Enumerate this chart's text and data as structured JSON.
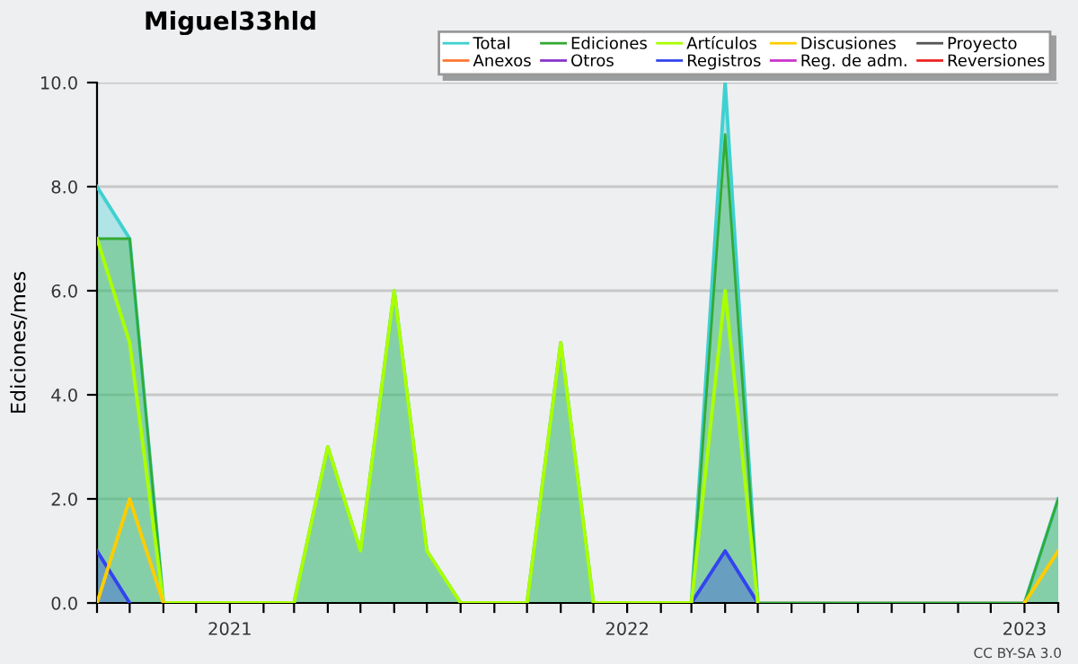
{
  "chart_data": {
    "type": "line",
    "title": "Miguel33hld",
    "ylabel": "Ediciones/mes",
    "x": [
      "2020-09",
      "2020-10",
      "2020-11",
      "2020-12",
      "2021-01",
      "2021-02",
      "2021-03",
      "2021-04",
      "2021-05",
      "2021-06",
      "2021-07",
      "2021-08",
      "2021-09",
      "2021-10",
      "2021-11",
      "2021-12",
      "2022-01",
      "2022-02",
      "2022-03",
      "2022-04",
      "2022-05",
      "2022-06",
      "2022-07",
      "2022-08",
      "2022-09",
      "2022-10",
      "2022-11",
      "2022-12",
      "2023-01",
      "2023-02"
    ],
    "series": [
      {
        "name": "Total",
        "type": "area",
        "color": "#40d0d0",
        "values": [
          8,
          7,
          0,
          null,
          null,
          null,
          0,
          3,
          1,
          6,
          1,
          0,
          null,
          0,
          5,
          0,
          null,
          null,
          0,
          10,
          0,
          null,
          null,
          null,
          null,
          null,
          null,
          null,
          0,
          2
        ]
      },
      {
        "name": "Anexos",
        "color": "#ff7733",
        "values": [
          null,
          null,
          null,
          null,
          null,
          null,
          null,
          null,
          null,
          null,
          null,
          null,
          null,
          null,
          null,
          null,
          null,
          null,
          null,
          null,
          null,
          null,
          null,
          null,
          null,
          null,
          null,
          null,
          null,
          null
        ]
      },
      {
        "name": "Ediciones",
        "type": "area",
        "color": "#33aa33",
        "values": [
          7,
          7,
          0,
          0,
          0,
          0,
          0,
          3,
          1,
          6,
          1,
          0,
          0,
          0,
          5,
          0,
          0,
          0,
          0,
          9,
          0,
          0,
          0,
          0,
          0,
          0,
          0,
          0,
          0,
          2
        ]
      },
      {
        "name": "Otros",
        "color": "#8833cc",
        "values": [
          null,
          null,
          null,
          null,
          null,
          null,
          null,
          null,
          null,
          null,
          null,
          null,
          null,
          null,
          null,
          null,
          null,
          null,
          null,
          null,
          null,
          null,
          null,
          null,
          null,
          null,
          null,
          null,
          null,
          null
        ]
      },
      {
        "name": "Artículos",
        "color": "#aaff00",
        "values": [
          7,
          5,
          0,
          0,
          0,
          0,
          0,
          3,
          1,
          6,
          1,
          0,
          0,
          0,
          5,
          0,
          0,
          0,
          0,
          6,
          0,
          null,
          null,
          null,
          null,
          null,
          null,
          null,
          null,
          null
        ]
      },
      {
        "name": "Registros",
        "type": "area",
        "color": "#3344ee",
        "values": [
          1,
          0,
          null,
          null,
          null,
          null,
          null,
          null,
          null,
          null,
          null,
          null,
          null,
          null,
          null,
          null,
          null,
          null,
          0,
          1,
          0,
          null,
          null,
          null,
          null,
          null,
          null,
          null,
          null,
          null
        ]
      },
      {
        "name": "Discusiones",
        "color": "#ffcc00",
        "values": [
          0,
          2,
          0,
          null,
          null,
          null,
          null,
          null,
          null,
          null,
          null,
          null,
          null,
          null,
          null,
          null,
          null,
          null,
          null,
          null,
          null,
          null,
          null,
          null,
          null,
          null,
          null,
          null,
          0,
          1
        ]
      },
      {
        "name": "Reg. de adm.",
        "color": "#cc33cc",
        "values": [
          null,
          null,
          null,
          null,
          null,
          null,
          null,
          null,
          null,
          null,
          null,
          null,
          null,
          null,
          null,
          null,
          null,
          null,
          null,
          null,
          null,
          null,
          null,
          null,
          null,
          null,
          null,
          null,
          null,
          null
        ]
      },
      {
        "name": "Proyecto",
        "color": "#555555",
        "values": [
          null,
          null,
          null,
          null,
          null,
          null,
          null,
          null,
          null,
          null,
          null,
          null,
          null,
          null,
          null,
          null,
          null,
          null,
          null,
          null,
          null,
          null,
          null,
          null,
          null,
          null,
          null,
          null,
          null,
          null
        ]
      },
      {
        "name": "Reversiones",
        "color": "#ee2222",
        "values": [
          null,
          null,
          null,
          null,
          null,
          null,
          null,
          null,
          null,
          null,
          null,
          null,
          null,
          null,
          null,
          null,
          null,
          null,
          null,
          null,
          null,
          null,
          null,
          null,
          null,
          null,
          null,
          null,
          null,
          null
        ]
      }
    ],
    "xlim": [
      "2020-09",
      "2023-02"
    ],
    "xticks": [
      {
        "value": "2020-09",
        "label": null
      },
      {
        "value": "2020-10",
        "label": null
      },
      {
        "value": "2020-11",
        "label": null
      },
      {
        "value": "2020-12",
        "label": null
      },
      {
        "value": "2021-01",
        "label": "2021"
      },
      {
        "value": "2021-02",
        "label": null
      },
      {
        "value": "2021-03",
        "label": null
      },
      {
        "value": "2021-04",
        "label": null
      },
      {
        "value": "2021-05",
        "label": null
      },
      {
        "value": "2021-06",
        "label": null
      },
      {
        "value": "2021-07",
        "label": null
      },
      {
        "value": "2021-08",
        "label": null
      },
      {
        "value": "2021-09",
        "label": null
      },
      {
        "value": "2021-10",
        "label": null
      },
      {
        "value": "2021-11",
        "label": null
      },
      {
        "value": "2021-12",
        "label": null
      },
      {
        "value": "2022-01",
        "label": "2022"
      },
      {
        "value": "2022-02",
        "label": null
      },
      {
        "value": "2022-03",
        "label": null
      },
      {
        "value": "2022-04",
        "label": null
      },
      {
        "value": "2022-05",
        "label": null
      },
      {
        "value": "2022-06",
        "label": null
      },
      {
        "value": "2022-07",
        "label": null
      },
      {
        "value": "2022-08",
        "label": null
      },
      {
        "value": "2022-09",
        "label": null
      },
      {
        "value": "2022-10",
        "label": null
      },
      {
        "value": "2022-11",
        "label": null
      },
      {
        "value": "2022-12",
        "label": null
      },
      {
        "value": "2023-01",
        "label": "2023"
      },
      {
        "value": "2023-02",
        "label": null
      }
    ],
    "ylim": [
      0,
      10
    ],
    "yticks": [
      {
        "value": 0,
        "label": "0.0"
      },
      {
        "value": 2,
        "label": "2.0"
      },
      {
        "value": 4,
        "label": "4.0"
      },
      {
        "value": 6,
        "label": "6.0"
      },
      {
        "value": 8,
        "label": "8.0"
      },
      {
        "value": 10,
        "label": "10.0"
      }
    ],
    "grid": "y",
    "legend": "top right",
    "marker": "none",
    "line_style": "solid",
    "annotations": [
      "CC BY-SA 3.0"
    ]
  }
}
